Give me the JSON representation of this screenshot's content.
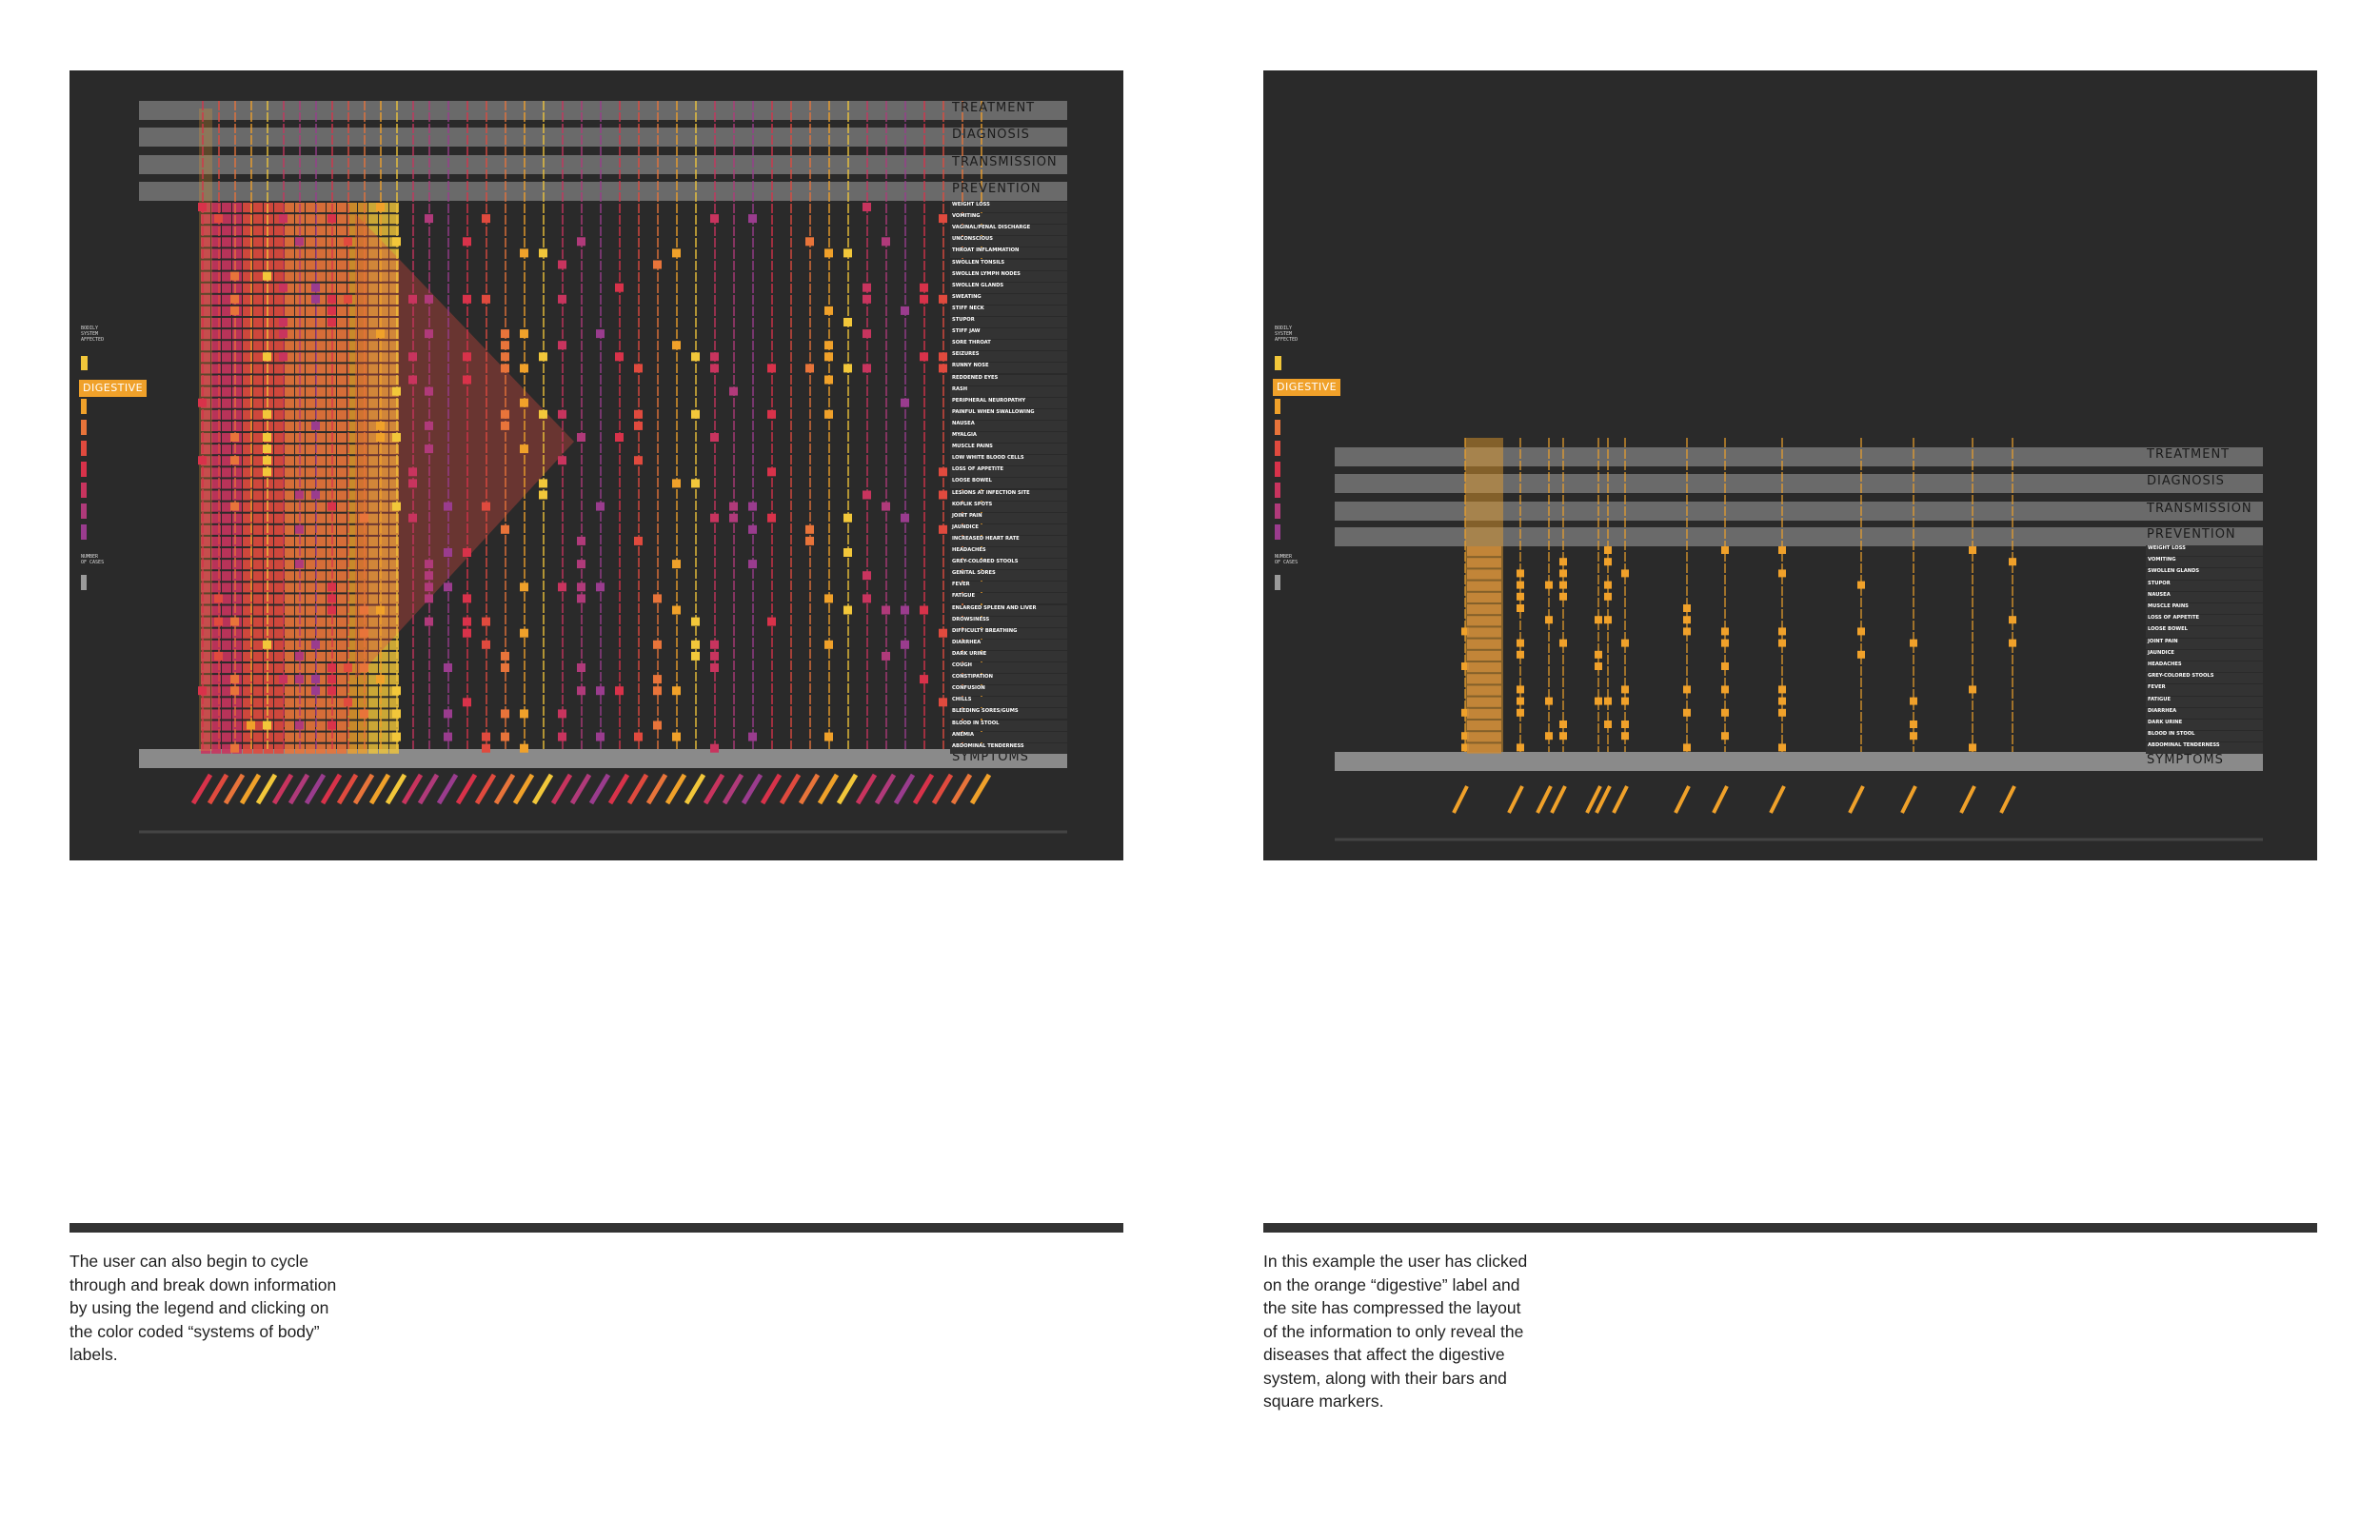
{
  "left_panel": {
    "categories": [
      "TREATMENT",
      "DIAGNOSIS",
      "TRANSMISSION",
      "PREVENTION"
    ],
    "footer_label": "SYMPTOMS",
    "legend_title": "BODILY\nSYSTEM\nAFFECTED",
    "legend_selected": "DIGESTIVE",
    "legend_cases_title": "NUMBER\nOF CASES",
    "symptoms": [
      "WEIGHT LOSS",
      "VOMITING",
      "VAGINAL/PENAL DISCHARGE",
      "UNCONSCIOUS",
      "THROAT INFLAMMATION",
      "SWOLLEN TONSILS",
      "SWOLLEN LYMPH NODES",
      "SWOLLEN GLANDS",
      "SWEATING",
      "STIFF NECK",
      "STUPOR",
      "STIFF JAW",
      "SORE THROAT",
      "SEIZURES",
      "RUNNY NOSE",
      "REDDENED EYES",
      "RASH",
      "PERIPHERAL NEUROPATHY",
      "PAINFUL WHEN SWALLOWING",
      "NAUSEA",
      "MYALGIA",
      "MUSCLE PAINS",
      "LOW WHITE BLOOD CELLS",
      "LOSS OF APPETITE",
      "LOOSE BOWEL",
      "LESIONS AT INFECTION SITE",
      "KOPLIK SPOTS",
      "JOINT PAIN",
      "JAUNDICE",
      "INCREASED HEART RATE",
      "HEADACHES",
      "GREY-COLORED STOOLS",
      "GENITAL SORES",
      "FEVER",
      "FATIGUE",
      "ENLARGED SPLEEN AND LIVER",
      "DROWSINESS",
      "DIFFICULTY BREATHING",
      "DIARRHEA",
      "DARK URINE",
      "COUGH",
      "CONSTIPATION",
      "CONFUSION",
      "CHILLS",
      "BLEEDING SORES/GUMS",
      "BLOOD IN STOOL",
      "ANEMIA",
      "ABDOMINAL TENDERNESS"
    ]
  },
  "right_panel": {
    "categories": [
      "TREATMENT",
      "DIAGNOSIS",
      "TRANSMISSION",
      "PREVENTION"
    ],
    "footer_label": "SYMPTOMS",
    "legend_title": "BODILY\nSYSTEM\nAFFECTED",
    "legend_selected": "DIGESTIVE",
    "legend_cases_title": "NUMBER\nOF CASES",
    "symptoms": [
      "WEIGHT LOSS",
      "VOMITING",
      "SWOLLEN GLANDS",
      "STUPOR",
      "NAUSEA",
      "MUSCLE PAINS",
      "LOSS OF APPETITE",
      "LOOSE BOWEL",
      "JOINT PAIN",
      "JAUNDICE",
      "HEADACHES",
      "GREY-COLORED STOOLS",
      "FEVER",
      "FATIGUE",
      "DIARRHEA",
      "DARK URINE",
      "BLOOD IN STOOL",
      "ABDOMINAL TENDERNESS"
    ]
  },
  "captions": {
    "left": "The user can also begin to cycle\nthrough and break down information\nby using the legend and  clicking on\nthe color coded “systems of body”\nlabels.",
    "right": "In this example the user has clicked\non the orange “digestive” label and\nthe site has compressed the layout\nof the information to only reveal the\ndiseases that affect the digestive\nsystem, along with their bars and\nsquare markers."
  },
  "colors": {
    "panel_bg": "#2a2a2a",
    "header_bar": "#6a6a6a",
    "symptoms_bar": "#8a8a8a",
    "digestive": "#f0a12a",
    "legend_swatches": [
      "#f2c73a",
      "#f0a12a",
      "#e8743a",
      "#e04a3e",
      "#d8324a",
      "#c8345e",
      "#b03a7a",
      "#9a3c8e"
    ]
  }
}
